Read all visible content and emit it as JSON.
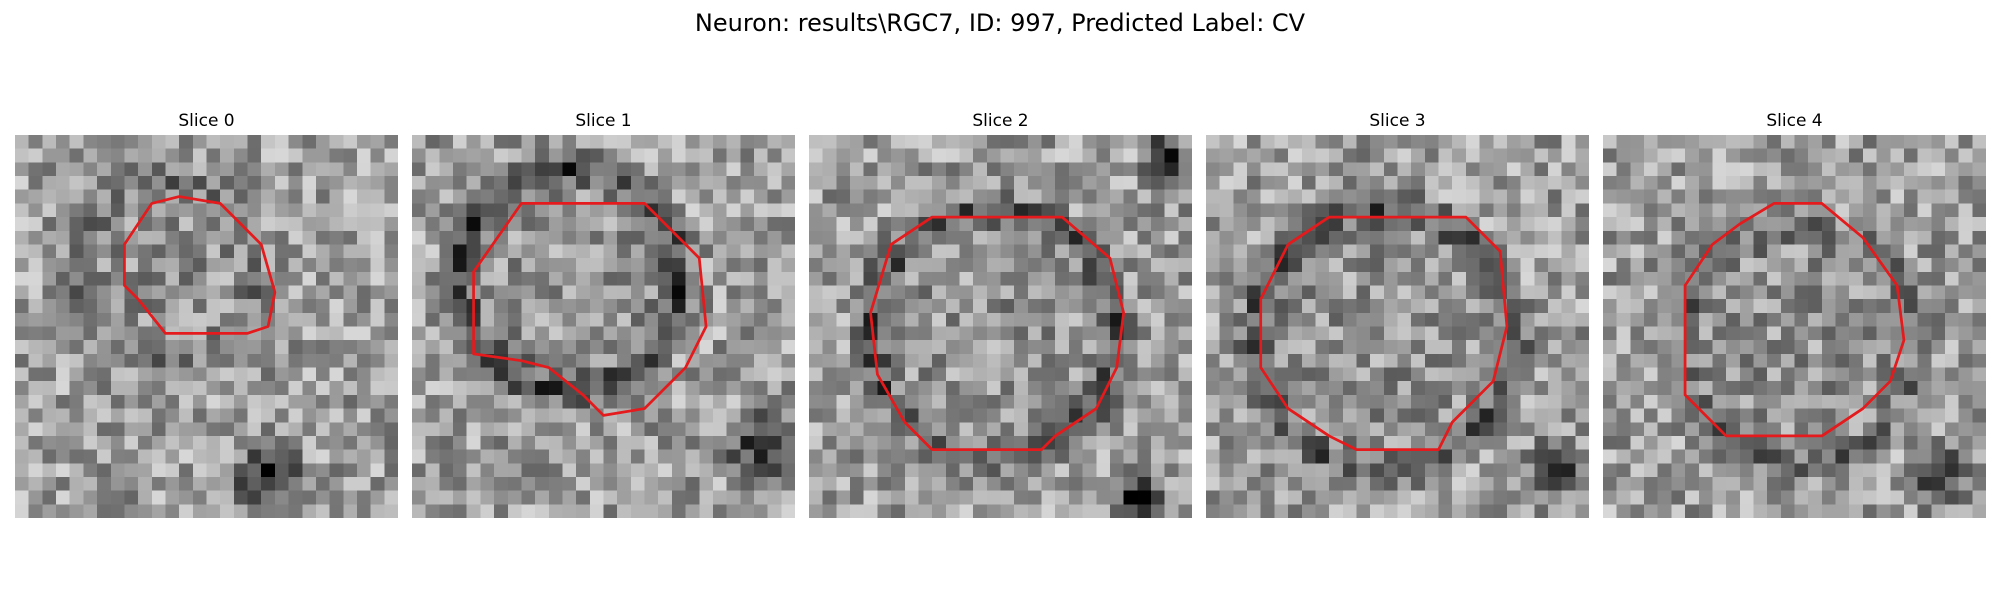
{
  "figure": {
    "title": "Neuron: results\\RGC7, ID: 997, Predicted Label: CV",
    "contour_color": "#e41a1c",
    "colormap": "gray",
    "grid_size": 28
  },
  "panels": [
    {
      "title": "Slice 0"
    },
    {
      "title": "Slice 1"
    },
    {
      "title": "Slice 2"
    },
    {
      "title": "Slice 3"
    },
    {
      "title": "Slice 4"
    }
  ]
}
